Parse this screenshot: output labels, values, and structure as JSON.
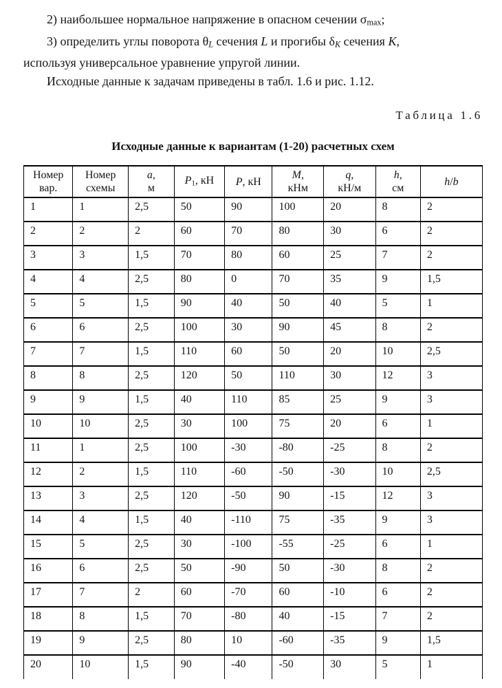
{
  "paragraphs": [
    {
      "segments": [
        {
          "t": "2) наибольшее нормальное напряжение в опасном сечении "
        },
        {
          "t": "σ"
        },
        {
          "t": "max",
          "sub": true
        },
        {
          "t": ";"
        }
      ]
    },
    {
      "segments": [
        {
          "t": "3) определить углы поворота "
        },
        {
          "t": "θ"
        },
        {
          "t": "L",
          "sub": true,
          "i": true
        },
        {
          "t": " сечения "
        },
        {
          "t": "L",
          "i": true
        },
        {
          "t": " и прогибы "
        },
        {
          "t": "δ"
        },
        {
          "t": "K",
          "sub": true,
          "i": true
        },
        {
          "t": " сечения "
        },
        {
          "t": "K",
          "i": true
        },
        {
          "t": ","
        }
      ]
    },
    {
      "segments": [
        {
          "t": "используя универсальное уравнение упругой линии."
        }
      ]
    },
    {
      "segments": [
        {
          "t": "Исходные данные к задачам приведены в табл. 1.6 и рис. 1.12."
        }
      ]
    }
  ],
  "table_label": "Таблица 1.6",
  "table_title": "Исходные данные к вариантам (1-20) расчетных схем",
  "table": {
    "columns": [
      {
        "id": "variant",
        "lines": [
          [
            {
              "t": "Номер"
            }
          ],
          [
            {
              "t": "вар."
            }
          ]
        ]
      },
      {
        "id": "scheme",
        "lines": [
          [
            {
              "t": "Номер"
            }
          ],
          [
            {
              "t": "схемы"
            }
          ]
        ]
      },
      {
        "id": "a",
        "lines": [
          [
            {
              "t": "a",
              "i": true
            },
            {
              "t": ","
            }
          ],
          [
            {
              "t": "м"
            }
          ]
        ]
      },
      {
        "id": "p1",
        "lines": [
          [
            {
              "t": "P",
              "i": true
            },
            {
              "t": "1",
              "sub": true
            },
            {
              "t": ", кН"
            }
          ]
        ]
      },
      {
        "id": "p",
        "lines": [
          [
            {
              "t": "P",
              "i": true
            },
            {
              "t": ", кН"
            }
          ]
        ]
      },
      {
        "id": "m",
        "lines": [
          [
            {
              "t": "M",
              "i": true
            },
            {
              "t": ","
            }
          ],
          [
            {
              "t": "кНм"
            }
          ]
        ]
      },
      {
        "id": "q",
        "lines": [
          [
            {
              "t": "q",
              "i": true
            },
            {
              "t": ","
            }
          ],
          [
            {
              "t": "кН/м"
            }
          ]
        ]
      },
      {
        "id": "h",
        "lines": [
          [
            {
              "t": "h",
              "i": true
            },
            {
              "t": ","
            }
          ],
          [
            {
              "t": "см"
            }
          ]
        ]
      },
      {
        "id": "hb",
        "lines": [
          [
            {
              "t": "h",
              "i": true
            },
            {
              "t": "/"
            },
            {
              "t": "b",
              "i": true
            }
          ]
        ]
      }
    ],
    "rows": [
      [
        "1",
        "1",
        "2,5",
        "50",
        "90",
        "100",
        "20",
        "8",
        "2"
      ],
      [
        "2",
        "2",
        "2",
        "60",
        "70",
        "80",
        "30",
        "6",
        "2"
      ],
      [
        "3",
        "3",
        "1,5",
        "70",
        "80",
        "60",
        "25",
        "7",
        "2"
      ],
      [
        "4",
        "4",
        "2,5",
        "80",
        "0",
        "70",
        "35",
        "9",
        "1,5"
      ],
      [
        "5",
        "5",
        "1,5",
        "90",
        "40",
        "50",
        "40",
        "5",
        "1"
      ],
      [
        "6",
        "6",
        "2,5",
        "100",
        "30",
        "90",
        "45",
        "8",
        "2"
      ],
      [
        "7",
        "7",
        "1,5",
        "110",
        "60",
        "50",
        "20",
        "10",
        "2,5"
      ],
      [
        "8",
        "8",
        "2,5",
        "120",
        "50",
        "110",
        "30",
        "12",
        "3"
      ],
      [
        "9",
        "9",
        "1,5",
        "40",
        "110",
        "85",
        "25",
        "9",
        "3"
      ],
      [
        "10",
        "10",
        "2,5",
        "30",
        "100",
        "75",
        "20",
        "6",
        "1"
      ],
      [
        "11",
        "1",
        "2,5",
        "100",
        "-30",
        "-80",
        "-25",
        "8",
        "2"
      ],
      [
        "12",
        "2",
        "1,5",
        "110",
        "-60",
        "-50",
        "-30",
        "10",
        "2,5"
      ],
      [
        "13",
        "3",
        "2,5",
        "120",
        "-50",
        "90",
        "-15",
        "12",
        "3"
      ],
      [
        "14",
        "4",
        "1,5",
        "40",
        "-110",
        "75",
        "-35",
        "9",
        "3"
      ],
      [
        "15",
        "5",
        "2,5",
        "30",
        "-100",
        "-55",
        "-25",
        "6",
        "1"
      ],
      [
        "16",
        "6",
        "2,5",
        "50",
        "-90",
        "50",
        "-30",
        "8",
        "2"
      ],
      [
        "17",
        "7",
        "2",
        "60",
        "-70",
        "60",
        "-10",
        "6",
        "2"
      ],
      [
        "18",
        "8",
        "1,5",
        "70",
        "-80",
        "40",
        "-15",
        "7",
        "2"
      ],
      [
        "19",
        "9",
        "2,5",
        "80",
        "10",
        "-60",
        "-35",
        "9",
        "1,5"
      ],
      [
        "20",
        "10",
        "1,5",
        "90",
        "-40",
        "-50",
        "30",
        "5",
        "1"
      ]
    ]
  }
}
